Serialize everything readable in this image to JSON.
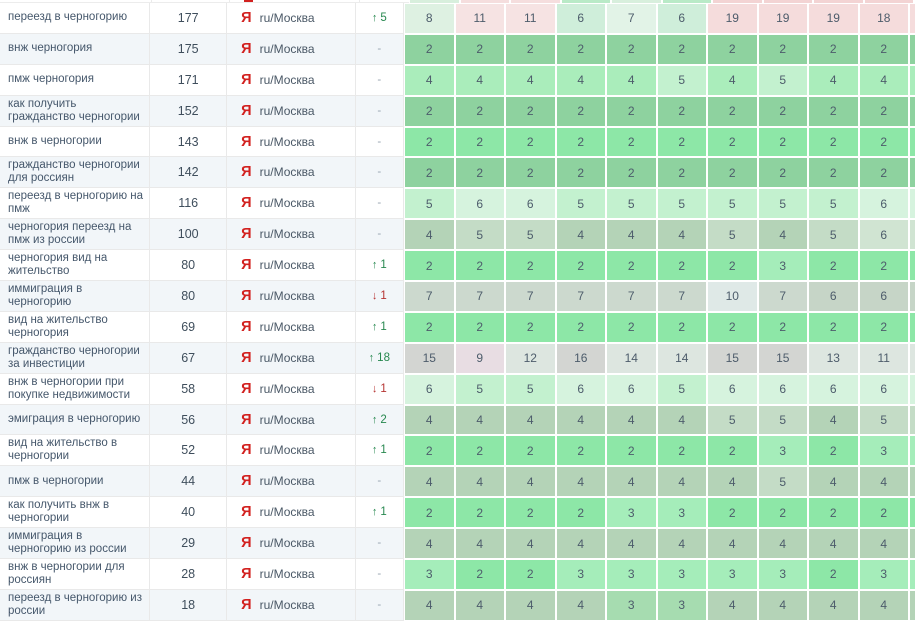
{
  "engine": {
    "icon_letter": "Я",
    "label": "ru/Москва"
  },
  "icons": {
    "up": "↑",
    "down": "↓",
    "dash": "-"
  },
  "palette": {
    "m2": "#8de7a7",
    "m3": "#a5edba",
    "m4": "#aaedbb",
    "m5": "#c3f1cf",
    "m6": "#d6f3de",
    "g6a": "#cfeeda",
    "g7a": "#e2f3e7",
    "g8a": "#def1e2",
    "pk11": "#f6e3e3",
    "pk19": "#f5dcdc",
    "e2": "#8ed29f",
    "s3": "#a6dcb0",
    "s4": "#b4d3b7",
    "s5": "#c4dcc6",
    "s6": "#d0e4d2",
    "gy7": "#ccd9ce",
    "gy6": "#c6d5c7",
    "gy10": "#dfe9e7",
    "gy15": "#d3d5d2",
    "gy12": "#dde6e0",
    "gy9": "#e8dde3"
  },
  "top_sliver": {
    "cells": [
      "#d8efdd",
      "#f5dede",
      "#f5dede",
      "#b9eac7",
      "#d8efdd",
      "#b9eac7",
      "#f3d4d4",
      "#f3d4d4",
      "#f3d4d4",
      "#f3d4d4"
    ]
  },
  "rows": [
    {
      "keyword": "переезд в черногорию",
      "volume": "177",
      "change": {
        "dir": "up",
        "value": "5"
      },
      "positions": [
        [
          "8",
          "g8a"
        ],
        [
          "11",
          "pk11"
        ],
        [
          "11",
          "pk11"
        ],
        [
          "6",
          "g6a"
        ],
        [
          "7",
          "g7a"
        ],
        [
          "6",
          "g6a"
        ],
        [
          "19",
          "pk19"
        ],
        [
          "19",
          "pk19"
        ],
        [
          "19",
          "pk19"
        ],
        [
          "18",
          "pk19"
        ]
      ]
    },
    {
      "keyword": "внж черногория",
      "volume": "175",
      "change": {
        "dir": "none",
        "value": "-"
      },
      "positions": [
        [
          "2",
          "e2"
        ],
        [
          "2",
          "e2"
        ],
        [
          "2",
          "e2"
        ],
        [
          "2",
          "e2"
        ],
        [
          "2",
          "e2"
        ],
        [
          "2",
          "e2"
        ],
        [
          "2",
          "e2"
        ],
        [
          "2",
          "e2"
        ],
        [
          "2",
          "e2"
        ],
        [
          "2",
          "e2"
        ]
      ]
    },
    {
      "keyword": "пмж черногория",
      "volume": "171",
      "change": {
        "dir": "none",
        "value": "-"
      },
      "positions": [
        [
          "4",
          "m4"
        ],
        [
          "4",
          "m4"
        ],
        [
          "4",
          "m4"
        ],
        [
          "4",
          "m4"
        ],
        [
          "4",
          "m4"
        ],
        [
          "5",
          "m5"
        ],
        [
          "4",
          "m4"
        ],
        [
          "5",
          "m5"
        ],
        [
          "4",
          "m4"
        ],
        [
          "4",
          "m4"
        ]
      ]
    },
    {
      "keyword": "как получить гражданство черногории",
      "volume": "152",
      "change": {
        "dir": "none",
        "value": "-"
      },
      "positions": [
        [
          "2",
          "e2"
        ],
        [
          "2",
          "e2"
        ],
        [
          "2",
          "e2"
        ],
        [
          "2",
          "e2"
        ],
        [
          "2",
          "e2"
        ],
        [
          "2",
          "e2"
        ],
        [
          "2",
          "e2"
        ],
        [
          "2",
          "e2"
        ],
        [
          "2",
          "e2"
        ],
        [
          "2",
          "e2"
        ]
      ]
    },
    {
      "keyword": "внж в черногории",
      "volume": "143",
      "change": {
        "dir": "none",
        "value": "-"
      },
      "positions": [
        [
          "2",
          "m2"
        ],
        [
          "2",
          "m2"
        ],
        [
          "2",
          "m2"
        ],
        [
          "2",
          "m2"
        ],
        [
          "2",
          "m2"
        ],
        [
          "2",
          "m2"
        ],
        [
          "2",
          "m2"
        ],
        [
          "2",
          "m2"
        ],
        [
          "2",
          "m2"
        ],
        [
          "2",
          "m2"
        ]
      ]
    },
    {
      "keyword": "гражданство черногории для россиян",
      "volume": "142",
      "change": {
        "dir": "none",
        "value": "-"
      },
      "positions": [
        [
          "2",
          "e2"
        ],
        [
          "2",
          "e2"
        ],
        [
          "2",
          "e2"
        ],
        [
          "2",
          "e2"
        ],
        [
          "2",
          "e2"
        ],
        [
          "2",
          "e2"
        ],
        [
          "2",
          "e2"
        ],
        [
          "2",
          "e2"
        ],
        [
          "2",
          "e2"
        ],
        [
          "2",
          "e2"
        ]
      ]
    },
    {
      "keyword": "переезд в черногорию на пмж",
      "volume": "116",
      "change": {
        "dir": "none",
        "value": "-"
      },
      "positions": [
        [
          "5",
          "m5"
        ],
        [
          "6",
          "m6"
        ],
        [
          "6",
          "m6"
        ],
        [
          "5",
          "m5"
        ],
        [
          "5",
          "m5"
        ],
        [
          "5",
          "m5"
        ],
        [
          "5",
          "m5"
        ],
        [
          "5",
          "m5"
        ],
        [
          "5",
          "m5"
        ],
        [
          "6",
          "m6"
        ]
      ]
    },
    {
      "keyword": "черногория переезд на пмж из россии",
      "volume": "100",
      "change": {
        "dir": "none",
        "value": "-"
      },
      "positions": [
        [
          "4",
          "s4"
        ],
        [
          "5",
          "s5"
        ],
        [
          "5",
          "s5"
        ],
        [
          "4",
          "s4"
        ],
        [
          "4",
          "s4"
        ],
        [
          "4",
          "s4"
        ],
        [
          "5",
          "s5"
        ],
        [
          "4",
          "s4"
        ],
        [
          "5",
          "s5"
        ],
        [
          "6",
          "s6"
        ]
      ]
    },
    {
      "keyword": "черногория вид на жительство",
      "volume": "80",
      "change": {
        "dir": "up",
        "value": "1"
      },
      "positions": [
        [
          "2",
          "m2"
        ],
        [
          "2",
          "m2"
        ],
        [
          "2",
          "m2"
        ],
        [
          "2",
          "m2"
        ],
        [
          "2",
          "m2"
        ],
        [
          "2",
          "m2"
        ],
        [
          "2",
          "m2"
        ],
        [
          "3",
          "m3"
        ],
        [
          "2",
          "m2"
        ],
        [
          "2",
          "m2"
        ]
      ]
    },
    {
      "keyword": "иммиграция в черногорию",
      "volume": "80",
      "change": {
        "dir": "down",
        "value": "1"
      },
      "positions": [
        [
          "7",
          "gy7"
        ],
        [
          "7",
          "gy7"
        ],
        [
          "7",
          "gy7"
        ],
        [
          "7",
          "gy7"
        ],
        [
          "7",
          "gy7"
        ],
        [
          "7",
          "gy7"
        ],
        [
          "10",
          "gy10"
        ],
        [
          "7",
          "gy7"
        ],
        [
          "6",
          "gy6"
        ],
        [
          "6",
          "gy6"
        ]
      ]
    },
    {
      "keyword": "вид на жительство черногория",
      "volume": "69",
      "change": {
        "dir": "up",
        "value": "1"
      },
      "positions": [
        [
          "2",
          "m2"
        ],
        [
          "2",
          "m2"
        ],
        [
          "2",
          "m2"
        ],
        [
          "2",
          "m2"
        ],
        [
          "2",
          "m2"
        ],
        [
          "2",
          "m2"
        ],
        [
          "2",
          "m2"
        ],
        [
          "2",
          "m2"
        ],
        [
          "2",
          "m2"
        ],
        [
          "2",
          "m2"
        ]
      ]
    },
    {
      "keyword": "гражданство черногории за инвестиции",
      "volume": "67",
      "change": {
        "dir": "up",
        "value": "18"
      },
      "positions": [
        [
          "15",
          "gy15"
        ],
        [
          "9",
          "gy9"
        ],
        [
          "12",
          "gy12"
        ],
        [
          "16",
          "gy15"
        ],
        [
          "14",
          "gy12"
        ],
        [
          "14",
          "gy12"
        ],
        [
          "15",
          "gy15"
        ],
        [
          "15",
          "gy15"
        ],
        [
          "13",
          "gy12"
        ],
        [
          "11",
          "gy12"
        ]
      ]
    },
    {
      "keyword": "внж в черногории при покупке недвижимости",
      "volume": "58",
      "change": {
        "dir": "down",
        "value": "1"
      },
      "positions": [
        [
          "6",
          "m6"
        ],
        [
          "5",
          "m5"
        ],
        [
          "5",
          "m5"
        ],
        [
          "6",
          "m6"
        ],
        [
          "6",
          "m6"
        ],
        [
          "5",
          "m5"
        ],
        [
          "6",
          "m6"
        ],
        [
          "6",
          "m6"
        ],
        [
          "6",
          "m6"
        ],
        [
          "6",
          "m6"
        ]
      ]
    },
    {
      "keyword": "эмиграция в черногорию",
      "volume": "56",
      "change": {
        "dir": "up",
        "value": "2"
      },
      "positions": [
        [
          "4",
          "s4"
        ],
        [
          "4",
          "s4"
        ],
        [
          "4",
          "s4"
        ],
        [
          "4",
          "s4"
        ],
        [
          "4",
          "s4"
        ],
        [
          "4",
          "s4"
        ],
        [
          "5",
          "s5"
        ],
        [
          "5",
          "s5"
        ],
        [
          "4",
          "s4"
        ],
        [
          "5",
          "s5"
        ]
      ]
    },
    {
      "keyword": "вид на жительство в черногории",
      "volume": "52",
      "change": {
        "dir": "up",
        "value": "1"
      },
      "positions": [
        [
          "2",
          "m2"
        ],
        [
          "2",
          "m2"
        ],
        [
          "2",
          "m2"
        ],
        [
          "2",
          "m2"
        ],
        [
          "2",
          "m2"
        ],
        [
          "2",
          "m2"
        ],
        [
          "2",
          "m2"
        ],
        [
          "3",
          "m3"
        ],
        [
          "2",
          "m2"
        ],
        [
          "3",
          "m3"
        ]
      ]
    },
    {
      "keyword": "пмж в черногории",
      "volume": "44",
      "change": {
        "dir": "none",
        "value": "-"
      },
      "positions": [
        [
          "4",
          "s4"
        ],
        [
          "4",
          "s4"
        ],
        [
          "4",
          "s4"
        ],
        [
          "4",
          "s4"
        ],
        [
          "4",
          "s4"
        ],
        [
          "4",
          "s4"
        ],
        [
          "4",
          "s4"
        ],
        [
          "5",
          "s5"
        ],
        [
          "4",
          "s4"
        ],
        [
          "4",
          "s4"
        ]
      ]
    },
    {
      "keyword": "как получить внж в черногории",
      "volume": "40",
      "change": {
        "dir": "up",
        "value": "1"
      },
      "positions": [
        [
          "2",
          "m2"
        ],
        [
          "2",
          "m2"
        ],
        [
          "2",
          "m2"
        ],
        [
          "2",
          "m2"
        ],
        [
          "3",
          "m3"
        ],
        [
          "3",
          "m3"
        ],
        [
          "2",
          "m2"
        ],
        [
          "2",
          "m2"
        ],
        [
          "2",
          "m2"
        ],
        [
          "2",
          "m2"
        ]
      ]
    },
    {
      "keyword": "иммиграция в черногорию из россии",
      "volume": "29",
      "change": {
        "dir": "none",
        "value": "-"
      },
      "positions": [
        [
          "4",
          "s4"
        ],
        [
          "4",
          "s4"
        ],
        [
          "4",
          "s4"
        ],
        [
          "4",
          "s4"
        ],
        [
          "4",
          "s4"
        ],
        [
          "4",
          "s4"
        ],
        [
          "4",
          "s4"
        ],
        [
          "4",
          "s4"
        ],
        [
          "4",
          "s4"
        ],
        [
          "4",
          "s4"
        ]
      ]
    },
    {
      "keyword": "внж в черногории для россиян",
      "volume": "28",
      "change": {
        "dir": "none",
        "value": "-"
      },
      "positions": [
        [
          "3",
          "m3"
        ],
        [
          "2",
          "m2"
        ],
        [
          "2",
          "m2"
        ],
        [
          "3",
          "m3"
        ],
        [
          "3",
          "m3"
        ],
        [
          "3",
          "m3"
        ],
        [
          "3",
          "m3"
        ],
        [
          "3",
          "m3"
        ],
        [
          "2",
          "m2"
        ],
        [
          "3",
          "m3"
        ]
      ]
    },
    {
      "keyword": "переезд в черногорию из россии",
      "volume": "18",
      "change": {
        "dir": "none",
        "value": "-"
      },
      "positions": [
        [
          "4",
          "s4"
        ],
        [
          "4",
          "s4"
        ],
        [
          "4",
          "s4"
        ],
        [
          "4",
          "s4"
        ],
        [
          "3",
          "s3"
        ],
        [
          "3",
          "s3"
        ],
        [
          "4",
          "s4"
        ],
        [
          "4",
          "s4"
        ],
        [
          "4",
          "s4"
        ],
        [
          "4",
          "s4"
        ]
      ]
    }
  ]
}
